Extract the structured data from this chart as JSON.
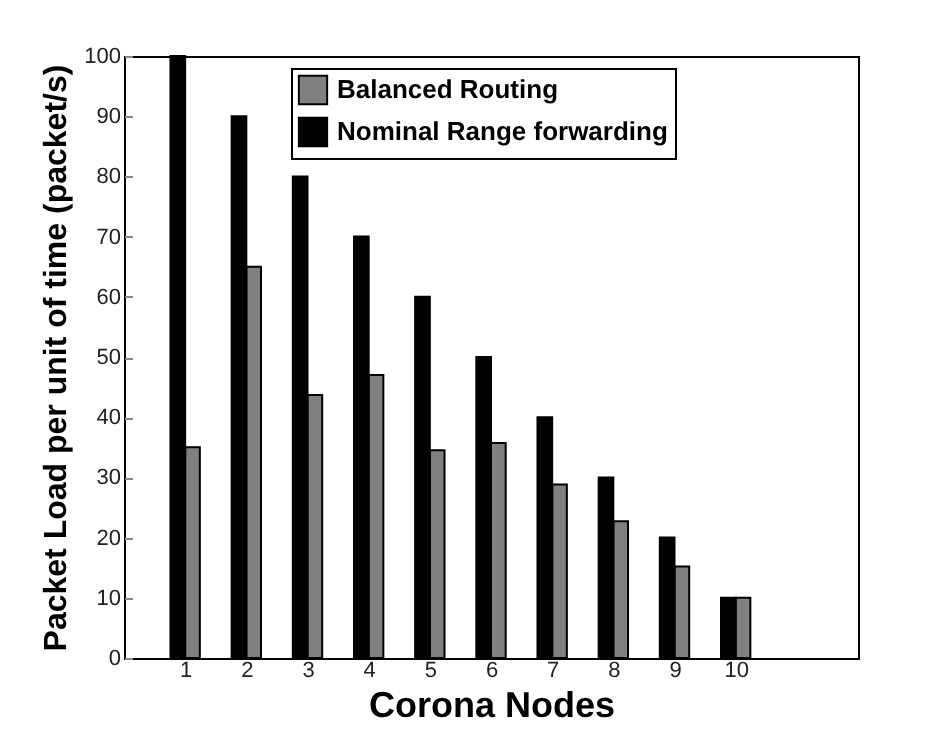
{
  "chart_data": {
    "type": "bar",
    "xlabel": "Corona Nodes",
    "ylabel": "Packet Load per unit of time (packet/s)",
    "x": [
      1,
      2,
      3,
      4,
      5,
      6,
      7,
      8,
      9,
      10
    ],
    "series": [
      {
        "name": "Balanced Routing",
        "color": "#808080",
        "values": [
          35,
          65,
          43.7,
          47,
          34.5,
          35.7,
          28.8,
          22.7,
          15.2,
          10
        ]
      },
      {
        "name": "Nominal Range forwarding",
        "color": "#000000",
        "values": [
          100,
          90,
          80,
          70,
          60,
          50,
          40,
          30,
          20,
          10
        ]
      }
    ],
    "xlim": [
      0,
      12
    ],
    "xticks": [
      1,
      2,
      3,
      4,
      5,
      6,
      7,
      8,
      9,
      10
    ],
    "ylim": [
      0,
      100
    ],
    "yticks": [
      0,
      10,
      20,
      30,
      40,
      50,
      60,
      70,
      80,
      90,
      100
    ],
    "legend": "top"
  }
}
